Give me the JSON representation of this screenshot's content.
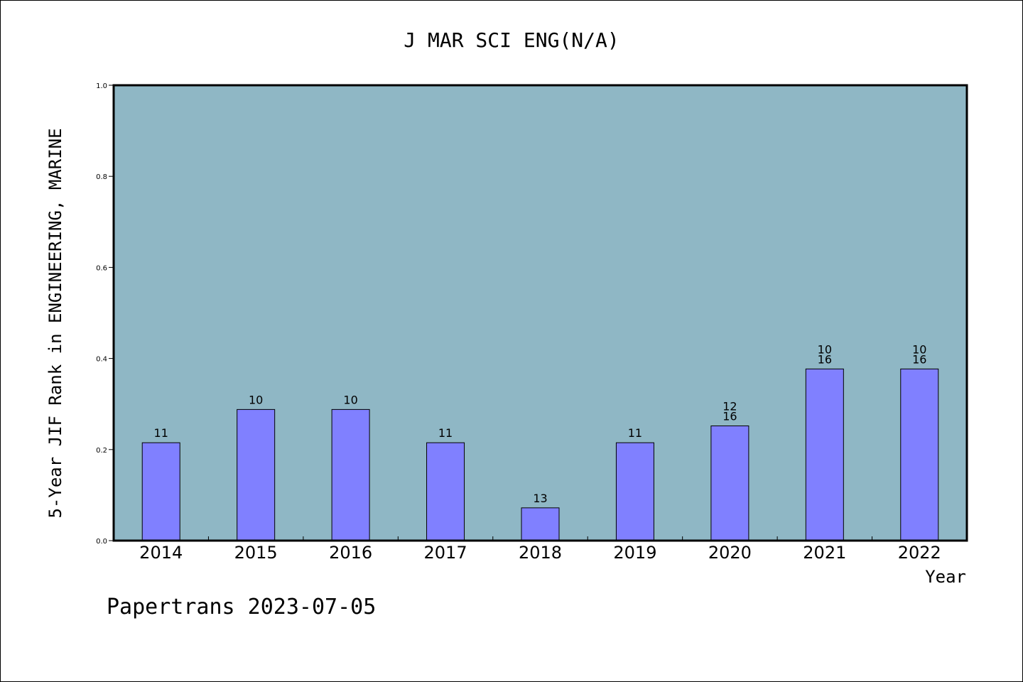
{
  "chart_data": {
    "type": "bar",
    "title": "J MAR SCI ENG(N/A)",
    "ylabel": "5-Year JIF Rank in ENGINEERING, MARINE",
    "xlabel": "Year",
    "ylim": [
      0,
      1.0
    ],
    "yticks": [
      "0.0",
      "0.2",
      "0.4",
      "0.6",
      "0.8",
      "1.0"
    ],
    "categories": [
      "2014",
      "2015",
      "2016",
      "2017",
      "2018",
      "2019",
      "2020",
      "2021",
      "2022"
    ],
    "values": [
      0.215,
      0.288,
      0.288,
      0.215,
      0.072,
      0.215,
      0.252,
      0.377,
      0.377
    ],
    "labels": [
      [
        "11"
      ],
      [
        "10"
      ],
      [
        "10"
      ],
      [
        "11"
      ],
      [
        "13"
      ],
      [
        "11"
      ],
      [
        "12",
        "16"
      ],
      [
        "10",
        "16"
      ],
      [
        "10",
        "16"
      ]
    ],
    "grid": false,
    "colors": {
      "plot_background": "#8fb7c5",
      "bar_fill": "#8080ff",
      "bar_stroke": "#000000"
    }
  },
  "footer": {
    "text": "Papertrans 2023-07-05"
  }
}
